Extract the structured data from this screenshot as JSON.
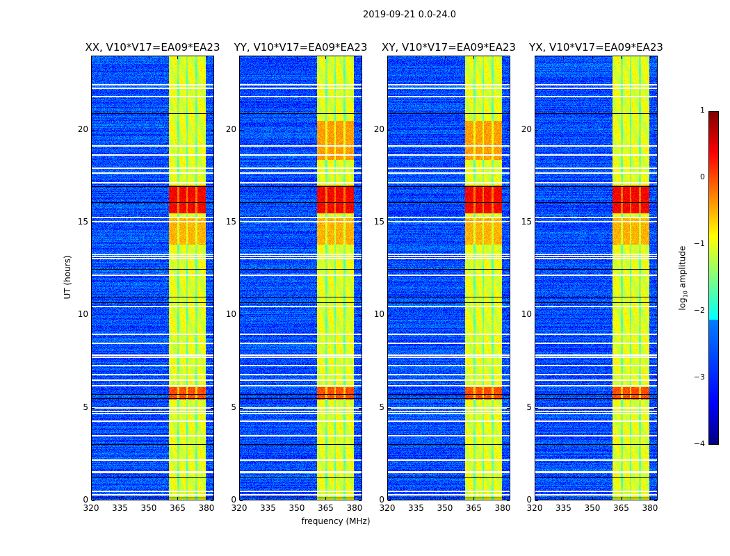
{
  "chart_data": {
    "type": "heatmap",
    "title": "2019-09-21 0.0-24.0",
    "xlabel": "frequency (MHz)",
    "ylabel": "UT (hours)",
    "xlim": [
      320,
      384
    ],
    "ylim": [
      0,
      24
    ],
    "xticks": [
      320,
      335,
      350,
      365,
      380
    ],
    "yticks": [
      0,
      5,
      10,
      15,
      20
    ],
    "colormap": "jet",
    "colorbar": {
      "label_main": "log",
      "label_sub": "10",
      "label_rest": " amplitude",
      "range": [
        -4,
        1
      ],
      "ticks": [
        1,
        0,
        -1,
        -2,
        -3,
        -4
      ],
      "tick_labels": [
        "1",
        "0",
        "−1",
        "−2",
        "−3",
        "−4"
      ]
    },
    "background_level": -3.0,
    "signal_band_mhz": [
      360.5,
      380
    ],
    "signal_level": -1.0,
    "band_gaps_mhz": [
      365.5,
      370.2,
      375.0
    ],
    "bright_periods": [
      {
        "hours": [
          15.5,
          17.0
        ],
        "level": 0.4
      },
      {
        "hours": [
          5.4,
          6.1
        ],
        "level": 0.0
      },
      {
        "hours": [
          18.4,
          20.5
        ],
        "level": -0.4,
        "panels": [
          1,
          2
        ]
      },
      {
        "hours": [
          13.8,
          15.3
        ],
        "level": -0.5
      }
    ],
    "flagged_white_hours": [
      22.5,
      22.3,
      21.85,
      19.2,
      18.7,
      18.0,
      17.7,
      17.2,
      15.3,
      15.1,
      13.3,
      13.2,
      13.1,
      12.2,
      10.5,
      9.0,
      8.5,
      7.85,
      7.75,
      7.3,
      6.8,
      6.5,
      6.2,
      5.0,
      4.8,
      4.7,
      4.3,
      3.5,
      2.2,
      1.55,
      1.5,
      0.5,
      0.3
    ],
    "flagged_black_hours": [
      20.9,
      16.95,
      16.1,
      12.5,
      11.0,
      10.7,
      5.7,
      5.5,
      3.0,
      1.2,
      0.1
    ],
    "panels": [
      {
        "title": "XX, V10*V17=EA09*EA23"
      },
      {
        "title": "YY, V10*V17=EA09*EA23"
      },
      {
        "title": "XY, V10*V17=EA09*EA23"
      },
      {
        "title": "YX, V10*V17=EA09*EA23"
      }
    ]
  }
}
